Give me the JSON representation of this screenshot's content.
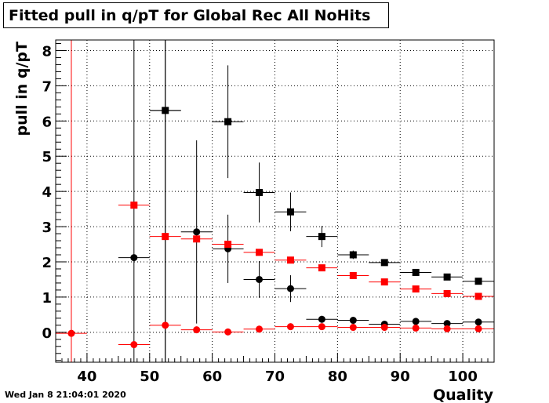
{
  "title": "Fitted pull in q/pT for Global Rec All NoHits",
  "timestamp": "Wed Jan  8 21:04:01 2020",
  "chart_data": {
    "type": "scatter",
    "title": "Fitted pull in q/pT for Global Rec All NoHits",
    "xlabel": "Quality",
    "ylabel": "pull in q/pT",
    "xlim": [
      35,
      105
    ],
    "ylim": [
      -0.85,
      8.3
    ],
    "xticks": [
      40,
      50,
      60,
      70,
      80,
      90,
      100
    ],
    "yticks": [
      0,
      1,
      2,
      3,
      4,
      5,
      6,
      7,
      8
    ],
    "grid": true,
    "series": [
      {
        "marker": "square",
        "color": "#000000",
        "points": [
          {
            "x": 52.5,
            "y": 6.3,
            "yerr": 8.0
          },
          {
            "x": 62.5,
            "y": 5.98,
            "yerr": 1.6
          },
          {
            "x": 67.5,
            "y": 3.97,
            "yerr": 0.85
          },
          {
            "x": 72.5,
            "y": 3.42,
            "yerr": 0.55
          },
          {
            "x": 77.5,
            "y": 2.72,
            "yerr": 0.3
          },
          {
            "x": 82.5,
            "y": 2.2,
            "yerr": 0.12
          },
          {
            "x": 87.5,
            "y": 1.98,
            "yerr": 0.08
          },
          {
            "x": 92.5,
            "y": 1.7,
            "yerr": 0.05
          },
          {
            "x": 97.5,
            "y": 1.57,
            "yerr": 0.04
          },
          {
            "x": 102.5,
            "y": 1.45,
            "yerr": 0.03
          }
        ]
      },
      {
        "marker": "circle",
        "color": "#000000",
        "points": [
          {
            "x": 47.5,
            "y": 2.12,
            "yerr": 8.0
          },
          {
            "x": 52.5,
            "y": 6.3,
            "yerr": 8.0
          },
          {
            "x": 57.5,
            "y": 2.85,
            "yerr": 2.6
          },
          {
            "x": 62.5,
            "y": 2.37,
            "yerr": 0.97
          },
          {
            "x": 67.5,
            "y": 1.5,
            "yerr": 0.52
          },
          {
            "x": 72.5,
            "y": 1.24,
            "yerr": 0.38
          },
          {
            "x": 77.5,
            "y": 0.37,
            "yerr": 0.1
          },
          {
            "x": 82.5,
            "y": 0.34,
            "yerr": 0.08
          },
          {
            "x": 87.5,
            "y": 0.23,
            "yerr": 0.05
          },
          {
            "x": 92.5,
            "y": 0.31,
            "yerr": 0.04
          },
          {
            "x": 97.5,
            "y": 0.25,
            "yerr": 0.03
          },
          {
            "x": 102.5,
            "y": 0.29,
            "yerr": 0.03
          }
        ]
      },
      {
        "marker": "square",
        "color": "#ff0000",
        "points": [
          {
            "x": 47.5,
            "y": 3.61,
            "yerr": 0.0
          },
          {
            "x": 52.5,
            "y": 2.72,
            "yerr": 0.0
          },
          {
            "x": 57.5,
            "y": 2.65,
            "yerr": 0.0
          },
          {
            "x": 62.5,
            "y": 2.5,
            "yerr": 0.0
          },
          {
            "x": 67.5,
            "y": 2.27,
            "yerr": 0.0
          },
          {
            "x": 72.5,
            "y": 2.05,
            "yerr": 0.0
          },
          {
            "x": 77.5,
            "y": 1.83,
            "yerr": 0.0
          },
          {
            "x": 82.5,
            "y": 1.61,
            "yerr": 0.0
          },
          {
            "x": 87.5,
            "y": 1.43,
            "yerr": 0.0
          },
          {
            "x": 92.5,
            "y": 1.23,
            "yerr": 0.0
          },
          {
            "x": 97.5,
            "y": 1.1,
            "yerr": 0.0
          },
          {
            "x": 102.5,
            "y": 1.02,
            "yerr": 0.0
          }
        ]
      },
      {
        "marker": "circle",
        "color": "#ff0000",
        "points": [
          {
            "x": 37.5,
            "y": -0.03,
            "yerr": 12.0
          },
          {
            "x": 47.5,
            "y": -0.35,
            "yerr": 0.0
          },
          {
            "x": 52.5,
            "y": 0.2,
            "yerr": 0.0
          },
          {
            "x": 57.5,
            "y": 0.07,
            "yerr": 0.0
          },
          {
            "x": 62.5,
            "y": 0.01,
            "yerr": 0.0
          },
          {
            "x": 67.5,
            "y": 0.09,
            "yerr": 0.0
          },
          {
            "x": 72.5,
            "y": 0.16,
            "yerr": 0.0
          },
          {
            "x": 77.5,
            "y": 0.16,
            "yerr": 0.0
          },
          {
            "x": 82.5,
            "y": 0.14,
            "yerr": 0.0
          },
          {
            "x": 87.5,
            "y": 0.14,
            "yerr": 0.0
          },
          {
            "x": 92.5,
            "y": 0.12,
            "yerr": 0.0
          },
          {
            "x": 97.5,
            "y": 0.1,
            "yerr": 0.0
          },
          {
            "x": 102.5,
            "y": 0.1,
            "yerr": 0.0
          }
        ]
      }
    ]
  }
}
